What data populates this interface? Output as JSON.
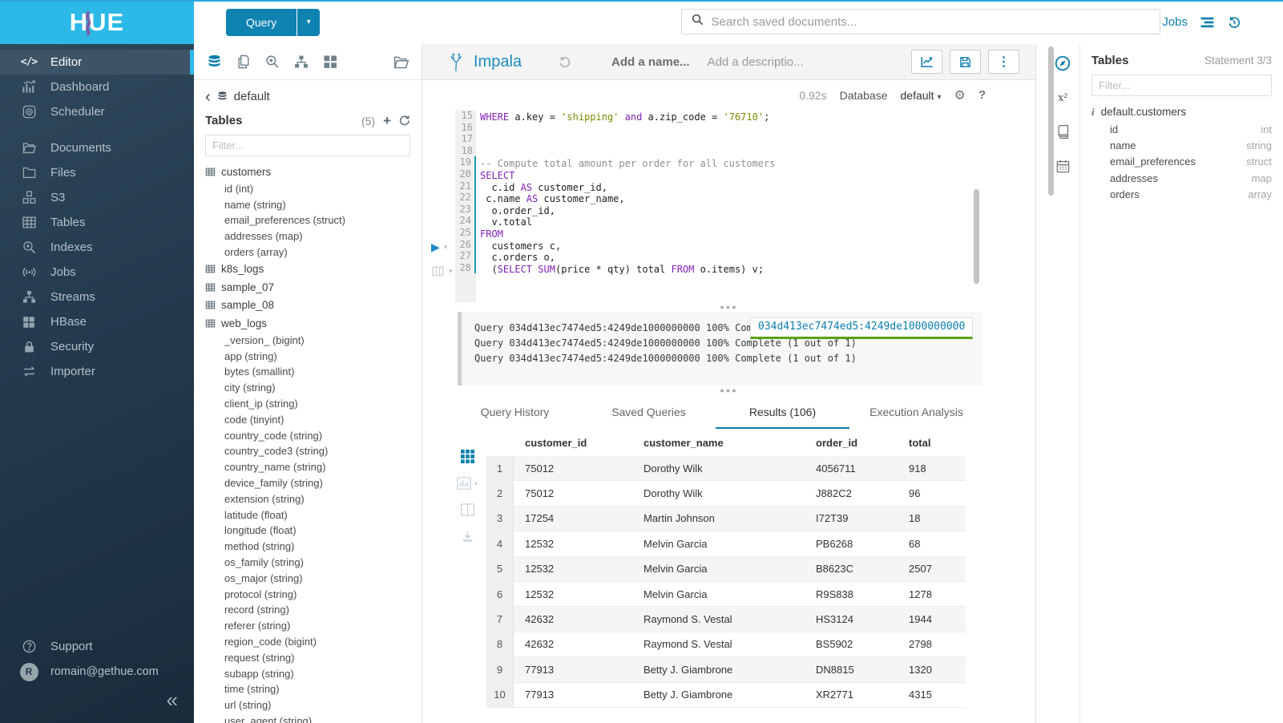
{
  "brand": {
    "logo_text": "HUE"
  },
  "topbar": {
    "query_button_label": "Query",
    "search_placeholder": "Search saved documents...",
    "jobs_label": "Jobs"
  },
  "sidebar": {
    "items": [
      {
        "label": "Editor",
        "icon": "code-icon",
        "active": true,
        "gap_after": false
      },
      {
        "label": "Dashboard",
        "icon": "dashboard-icon",
        "active": false,
        "gap_after": false
      },
      {
        "label": "Scheduler",
        "icon": "scheduler-icon",
        "active": false,
        "gap_after": true
      },
      {
        "label": "Documents",
        "icon": "documents-icon",
        "active": false,
        "gap_after": false
      },
      {
        "label": "Files",
        "icon": "folder-icon",
        "active": false,
        "gap_after": false
      },
      {
        "label": "S3",
        "icon": "cubes-icon",
        "active": false,
        "gap_after": false
      },
      {
        "label": "Tables",
        "icon": "table-grid-icon",
        "active": false,
        "gap_after": false
      },
      {
        "label": "Indexes",
        "icon": "search-plus-icon",
        "active": false,
        "gap_after": false
      },
      {
        "label": "Jobs",
        "icon": "broadcast-icon",
        "active": false,
        "gap_after": false
      },
      {
        "label": "Streams",
        "icon": "sitemap-icon",
        "active": false,
        "gap_after": false
      },
      {
        "label": "HBase",
        "icon": "grid-2x2-icon",
        "active": false,
        "gap_after": false
      },
      {
        "label": "Security",
        "icon": "lock-icon",
        "active": false,
        "gap_after": false
      },
      {
        "label": "Importer",
        "icon": "swap-arrows-icon",
        "active": false,
        "gap_after": false
      }
    ],
    "support_label": "Support",
    "user_email": "romain@gethue.com",
    "avatar_initial": "R"
  },
  "left_assist": {
    "breadcrumb_db": "default",
    "header": "Tables",
    "count": "(5)",
    "filter_placeholder": "Filter...",
    "tree": [
      {
        "name": "customers",
        "columns": [
          "id (int)",
          "name (string)",
          "email_preferences (struct)",
          "addresses (map)",
          "orders (array)"
        ]
      },
      {
        "name": "k8s_logs",
        "columns": []
      },
      {
        "name": "sample_07",
        "columns": []
      },
      {
        "name": "sample_08",
        "columns": []
      },
      {
        "name": "web_logs",
        "columns": [
          "_version_ (bigint)",
          "app (string)",
          "bytes (smallint)",
          "city (string)",
          "client_ip (string)",
          "code (tinyint)",
          "country_code (string)",
          "country_code3 (string)",
          "country_name (string)",
          "device_family (string)",
          "extension (string)",
          "latitude (float)",
          "longitude (float)",
          "method (string)",
          "os_family (string)",
          "os_major (string)",
          "protocol (string)",
          "record (string)",
          "referer (string)",
          "region_code (bigint)",
          "request (string)",
          "subapp (string)",
          "time (string)",
          "url (string)",
          "user_agent (string)"
        ]
      }
    ]
  },
  "editor": {
    "engine": "Impala",
    "name_placeholder": "Add a name...",
    "description_placeholder": "Add a descriptio...",
    "exec_time": "0.92s",
    "database_label": "Database",
    "database_value": "default",
    "lines": [
      {
        "n": "15",
        "stmt": false,
        "tokens": [
          [
            "kw",
            "WHERE"
          ],
          [
            "pl",
            " a.key = "
          ],
          [
            "str",
            "'shipping'"
          ],
          [
            "pl",
            " "
          ],
          [
            "kw",
            "and"
          ],
          [
            "pl",
            " a.zip_code = "
          ],
          [
            "str",
            "'76710'"
          ],
          [
            "pl",
            ";"
          ]
        ]
      },
      {
        "n": "16",
        "stmt": false,
        "tokens": []
      },
      {
        "n": "17",
        "stmt": false,
        "tokens": []
      },
      {
        "n": "18",
        "stmt": false,
        "tokens": []
      },
      {
        "n": "19",
        "stmt": true,
        "tokens": [
          [
            "com",
            "-- Compute total amount per order for all customers"
          ]
        ]
      },
      {
        "n": "20",
        "stmt": true,
        "tokens": [
          [
            "kw",
            "SELECT"
          ]
        ]
      },
      {
        "n": "21",
        "stmt": true,
        "tokens": [
          [
            "pl",
            "  c.id "
          ],
          [
            "kw",
            "AS"
          ],
          [
            "pl",
            " customer_id,"
          ]
        ]
      },
      {
        "n": "22",
        "stmt": true,
        "tokens": [
          [
            "pl",
            " c.name "
          ],
          [
            "kw",
            "AS"
          ],
          [
            "pl",
            " customer_name,"
          ]
        ]
      },
      {
        "n": "23",
        "stmt": true,
        "tokens": [
          [
            "pl",
            "  o.order_id,"
          ]
        ]
      },
      {
        "n": "24",
        "stmt": true,
        "tokens": [
          [
            "pl",
            "  v.total"
          ]
        ]
      },
      {
        "n": "25",
        "stmt": true,
        "tokens": [
          [
            "kw",
            "FROM"
          ]
        ]
      },
      {
        "n": "26",
        "stmt": true,
        "tokens": [
          [
            "pl",
            "  customers c,"
          ]
        ]
      },
      {
        "n": "27",
        "stmt": true,
        "tokens": [
          [
            "pl",
            "  c.orders o,"
          ]
        ]
      },
      {
        "n": "28",
        "stmt": true,
        "tokens": [
          [
            "pl",
            "  ("
          ],
          [
            "kw",
            "SELECT"
          ],
          [
            "pl",
            " "
          ],
          [
            "kw",
            "SUM"
          ],
          [
            "pl",
            "(price * qty) total "
          ],
          [
            "kw",
            "FROM"
          ],
          [
            "pl",
            " o.items) v;"
          ]
        ]
      }
    ]
  },
  "logs": {
    "entries": [
      "Query 034d413ec7474ed5:4249de1000000000 100% Complete (1 out of 1)",
      "Query 034d413ec7474ed5:4249de1000000000 100% Complete (1 out of 1)",
      "Query 034d413ec7474ed5:4249de1000000000 100% Complete (1 out of 1)"
    ],
    "popover_text": "034d413ec7474ed5:4249de1000000000"
  },
  "result_tabs": {
    "tabs": [
      "Query History",
      "Saved Queries",
      "Results (106)",
      "Execution Analysis"
    ],
    "active_index": 2
  },
  "results": {
    "columns": [
      "customer_id",
      "customer_name",
      "order_id",
      "total"
    ],
    "rows": [
      [
        "1",
        "75012",
        "Dorothy Wilk",
        "4056711",
        "918"
      ],
      [
        "2",
        "75012",
        "Dorothy Wilk",
        "J882C2",
        "96"
      ],
      [
        "3",
        "17254",
        "Martin Johnson",
        "I72T39",
        "18"
      ],
      [
        "4",
        "12532",
        "Melvin Garcia",
        "PB6268",
        "68"
      ],
      [
        "5",
        "12532",
        "Melvin Garcia",
        "B8623C",
        "2507"
      ],
      [
        "6",
        "12532",
        "Melvin Garcia",
        "R9S838",
        "1278"
      ],
      [
        "7",
        "42632",
        "Raymond S. Vestal",
        "HS3124",
        "1944"
      ],
      [
        "8",
        "42632",
        "Raymond S. Vestal",
        "BS5902",
        "2798"
      ],
      [
        "9",
        "77913",
        "Betty J. Giambrone",
        "DN8815",
        "1320"
      ],
      [
        "10",
        "77913",
        "Betty J. Giambrone",
        "XR2771",
        "4315"
      ]
    ]
  },
  "right_assist": {
    "header": "Tables",
    "statement": "Statement 3/3",
    "filter_placeholder": "Filter...",
    "table_name": "default.customers",
    "columns": [
      {
        "name": "id",
        "type": "int"
      },
      {
        "name": "name",
        "type": "string"
      },
      {
        "name": "email_preferences",
        "type": "struct"
      },
      {
        "name": "addresses",
        "type": "map"
      },
      {
        "name": "orders",
        "type": "array"
      }
    ]
  },
  "colors": {
    "primary": "#0b7fad",
    "brand_cyan": "#2cb9e8",
    "keyword": "#8023b6",
    "string": "#7d8a00",
    "comment": "#8e908c",
    "popover_underline": "#58a312"
  }
}
